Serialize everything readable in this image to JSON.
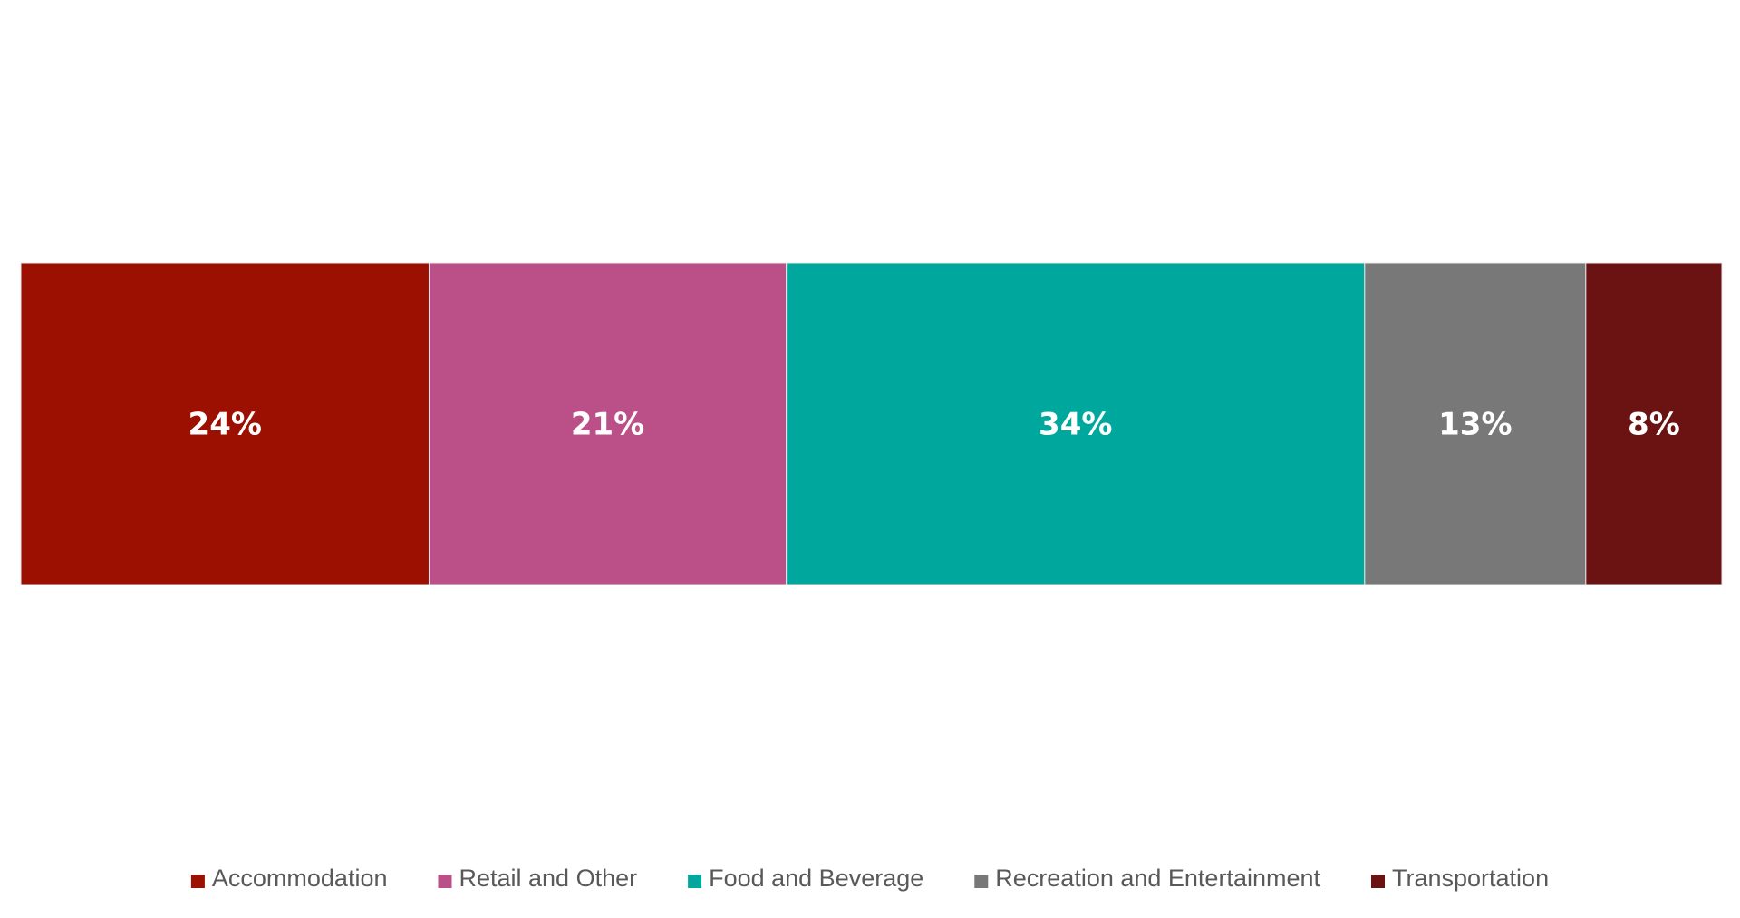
{
  "chart_data": {
    "type": "bar",
    "orientation": "horizontal",
    "stacked": "100%",
    "categories": [
      ""
    ],
    "series": [
      {
        "name": "Accommodation",
        "values": [
          24
        ],
        "label": "24%",
        "color": "#9B1000"
      },
      {
        "name": "Retail and Other",
        "values": [
          21
        ],
        "label": "21%",
        "color": "#BB5088"
      },
      {
        "name": "Food and Beverage",
        "values": [
          34
        ],
        "label": "34%",
        "color": "#00A79D"
      },
      {
        "name": "Recreation and Entertainment",
        "values": [
          13
        ],
        "label": "13%",
        "color": "#787878"
      },
      {
        "name": "Transportation",
        "values": [
          8
        ],
        "label": "8%",
        "color": "#6B1212"
      }
    ],
    "xlim": [
      0,
      100
    ],
    "grid": false,
    "legend": "bottom",
    "data_labels": true
  }
}
